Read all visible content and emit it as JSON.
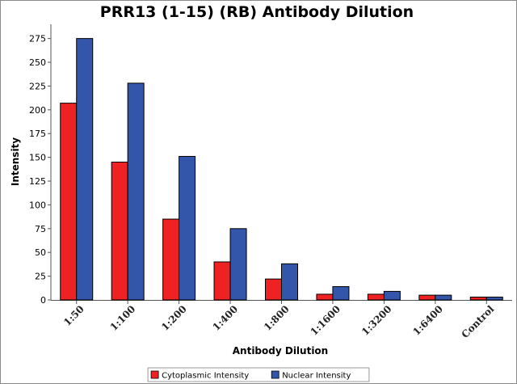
{
  "chart_data": {
    "type": "bar",
    "title": "PRR13 (1-15) (RB) Antibody Dilution",
    "xlabel": "Antibody Dilution",
    "ylabel": "Intensity",
    "categories": [
      "1:50",
      "1:100",
      "1:200",
      "1:400",
      "1:800",
      "1:1600",
      "1:3200",
      "1:6400",
      "Control"
    ],
    "series": [
      {
        "name": "Cytoplasmic Intensity",
        "color": "#ee2222",
        "values": [
          207,
          145,
          85,
          40,
          22,
          6,
          6,
          5,
          3
        ]
      },
      {
        "name": "Nuclear Intensity",
        "color": "#3355aa",
        "values": [
          275,
          228,
          151,
          75,
          38,
          14,
          9,
          5,
          3
        ]
      }
    ],
    "ylim": [
      0,
      290
    ],
    "yticks": [
      0,
      25,
      50,
      75,
      100,
      125,
      150,
      175,
      200,
      225,
      250,
      275
    ],
    "grid": false,
    "legend_position": "bottom"
  }
}
